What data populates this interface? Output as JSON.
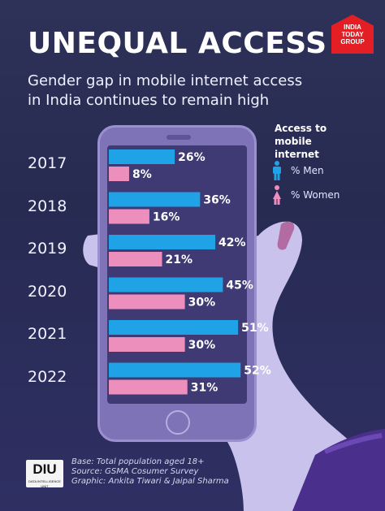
{
  "header": {
    "title": "UNEQUAL ACCESS",
    "subtitle": "Gender gap in mobile internet access in India continues to remain high"
  },
  "logo": {
    "lines": [
      "INDIA",
      "TODAY",
      "GROUP"
    ],
    "color": "#e31e24"
  },
  "legend": {
    "title": "Access to mobile internet",
    "items": [
      {
        "label": "% Men",
        "icon": "man-icon",
        "color": "#1fa3e6"
      },
      {
        "label": "% Women",
        "icon": "woman-icon",
        "color": "#ec8fbd"
      }
    ]
  },
  "chart_data": {
    "type": "bar",
    "orientation": "horizontal",
    "title": "UNEQUAL ACCESS",
    "subtitle": "Gender gap in mobile internet access in India continues to remain high",
    "categories": [
      "2017",
      "2018",
      "2019",
      "2020",
      "2021",
      "2022"
    ],
    "series": [
      {
        "name": "% Men",
        "values": [
          26,
          36,
          42,
          45,
          51,
          52
        ],
        "color": "#1fa3e6"
      },
      {
        "name": "% Women",
        "values": [
          8,
          16,
          21,
          30,
          30,
          31
        ],
        "color": "#ec8fbd"
      }
    ],
    "value_suffix": "%",
    "xlim": [
      0,
      60
    ],
    "grid": false,
    "legend_position": "top-right"
  },
  "footer": {
    "lines": [
      "Base: Total population aged 18+",
      "Source: GSMA Cosumer Survey",
      "Graphic: Ankita Tiwari & Jaipal Sharma"
    ],
    "badge": "DIU",
    "badge_small": "DATA INTELLIGENCE UNIT"
  }
}
